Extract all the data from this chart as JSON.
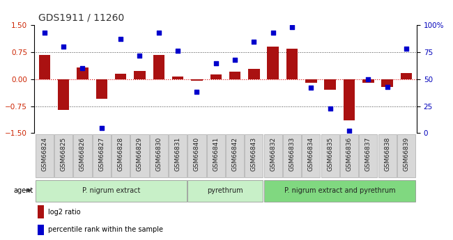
{
  "title": "GDS1911 / 11260",
  "samples": [
    "GSM66824",
    "GSM66825",
    "GSM66826",
    "GSM66827",
    "GSM66828",
    "GSM66829",
    "GSM66830",
    "GSM66831",
    "GSM66840",
    "GSM66841",
    "GSM66842",
    "GSM66843",
    "GSM66832",
    "GSM66833",
    "GSM66834",
    "GSM66835",
    "GSM66836",
    "GSM66837",
    "GSM66838",
    "GSM66839"
  ],
  "log2_ratio": [
    0.68,
    -0.85,
    0.32,
    -0.55,
    0.15,
    0.22,
    0.68,
    0.08,
    -0.05,
    0.13,
    0.2,
    0.28,
    0.9,
    0.85,
    -0.1,
    -0.3,
    -1.15,
    -0.1,
    -0.22,
    0.18
  ],
  "percentile_rank": [
    93,
    80,
    60,
    5,
    87,
    72,
    93,
    76,
    38,
    65,
    68,
    85,
    93,
    98,
    42,
    23,
    2,
    50,
    43,
    78
  ],
  "groups": [
    {
      "label": "P. nigrum extract",
      "start": 0,
      "end": 7,
      "color": "#c8f0c8"
    },
    {
      "label": "pyrethrum",
      "start": 8,
      "end": 11,
      "color": "#c8f0c8"
    },
    {
      "label": "P. nigrum extract and pyrethrum",
      "start": 12,
      "end": 19,
      "color": "#80d880"
    }
  ],
  "bar_color": "#aa1111",
  "dot_color": "#0000cc",
  "zero_line_color": "#dd0000",
  "hline_color": "#444444",
  "ylim_left": [
    -1.5,
    1.5
  ],
  "ylim_right": [
    0,
    100
  ],
  "yticks_left": [
    -1.5,
    -0.75,
    0,
    0.75,
    1.5
  ],
  "yticks_right": [
    0,
    25,
    50,
    75,
    100
  ],
  "legend_items": [
    "log2 ratio",
    "percentile rank within the sample"
  ],
  "bar_width": 0.6,
  "background_color": "#ffffff",
  "xlabel_fontsize": 6.5,
  "tick_fontsize": 7.5,
  "title_fontsize": 10,
  "cell_bg": "#d8d8d8",
  "cell_border": "#aaaaaa"
}
